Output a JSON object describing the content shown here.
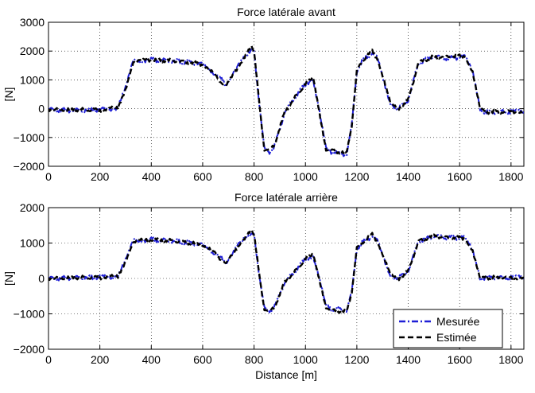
{
  "figure": {
    "legend": {
      "measured_label": "Mesurée",
      "estimated_label": "Estimée"
    },
    "colors": {
      "measured": "#1f1fd6",
      "estimated": "#000000"
    }
  },
  "chart_data": [
    {
      "type": "line",
      "title": "Force latérale avant",
      "xlabel": "",
      "ylabel": "[N]",
      "xlim": [
        0,
        1850
      ],
      "ylim": [
        -2000,
        3000
      ],
      "xticks": [
        0,
        200,
        400,
        600,
        800,
        1000,
        1200,
        1400,
        1600,
        1800
      ],
      "xtick_labels": [
        "0",
        "200",
        "400",
        "600",
        "800",
        "1000",
        "1200",
        "1400",
        "1600",
        "1800"
      ],
      "yticks": [
        -2000,
        -1000,
        0,
        1000,
        2000,
        3000
      ],
      "ytick_labels": [
        "−2000",
        "−1000",
        "0",
        "1000",
        "2000",
        "3000"
      ],
      "grid": true,
      "legend_position": "none",
      "x": [
        0,
        100,
        200,
        270,
        300,
        330,
        400,
        500,
        600,
        650,
        690,
        740,
        790,
        800,
        820,
        840,
        860,
        880,
        920,
        960,
        1000,
        1030,
        1050,
        1080,
        1100,
        1160,
        1180,
        1200,
        1220,
        1260,
        1280,
        1330,
        1360,
        1400,
        1440,
        1500,
        1560,
        1620,
        1650,
        1680,
        1700,
        1800,
        1850
      ],
      "series": [
        {
          "name": "Mesurée",
          "values": [
            -30,
            -60,
            -40,
            30,
            700,
            1650,
            1700,
            1650,
            1550,
            1200,
            850,
            1500,
            2100,
            2000,
            200,
            -1400,
            -1500,
            -1300,
            -100,
            400,
            850,
            1050,
            100,
            -1400,
            -1500,
            -1600,
            -600,
            1300,
            1650,
            1950,
            1750,
            200,
            -30,
            300,
            1600,
            1800,
            1750,
            1800,
            1300,
            0,
            -130,
            -100,
            -120
          ]
        },
        {
          "name": "Estimée",
          "values": [
            -30,
            -40,
            -40,
            30,
            700,
            1650,
            1700,
            1650,
            1550,
            1150,
            750,
            1500,
            2150,
            2000,
            200,
            -1400,
            -1450,
            -1250,
            -100,
            400,
            850,
            1050,
            100,
            -1400,
            -1450,
            -1550,
            -600,
            1300,
            1650,
            2000,
            1750,
            200,
            -20,
            300,
            1600,
            1800,
            1800,
            1850,
            1300,
            0,
            -120,
            -100,
            -100
          ]
        }
      ]
    },
    {
      "type": "line",
      "title": "Force latérale arrière",
      "xlabel": "Distance [m]",
      "ylabel": "[N]",
      "xlim": [
        0,
        1850
      ],
      "ylim": [
        -2000,
        2000
      ],
      "xticks": [
        0,
        200,
        400,
        600,
        800,
        1000,
        1200,
        1400,
        1600,
        1800
      ],
      "xtick_labels": [
        "0",
        "200",
        "400",
        "600",
        "800",
        "1000",
        "1200",
        "1400",
        "1600",
        "1800"
      ],
      "yticks": [
        -2000,
        -1000,
        0,
        1000,
        2000
      ],
      "ytick_labels": [
        "−2000",
        "−1000",
        "0",
        "1000",
        "2000"
      ],
      "grid": true,
      "legend_position": "bottom-right",
      "x": [
        0,
        100,
        200,
        270,
        300,
        330,
        400,
        500,
        600,
        650,
        690,
        740,
        790,
        800,
        820,
        840,
        860,
        880,
        920,
        960,
        1000,
        1030,
        1050,
        1080,
        1100,
        1160,
        1180,
        1200,
        1220,
        1260,
        1280,
        1330,
        1360,
        1400,
        1440,
        1500,
        1560,
        1620,
        1650,
        1680,
        1700,
        1800,
        1850
      ],
      "series": [
        {
          "name": "Mesurée",
          "values": [
            0,
            20,
            30,
            60,
            500,
            1050,
            1100,
            1050,
            950,
            700,
            450,
            950,
            1300,
            1250,
            100,
            -850,
            -900,
            -800,
            -100,
            200,
            550,
            650,
            100,
            -800,
            -850,
            -900,
            -400,
            850,
            1000,
            1200,
            1050,
            100,
            0,
            200,
            1050,
            1200,
            1150,
            1150,
            800,
            0,
            20,
            30,
            20
          ]
        },
        {
          "name": "Estimée",
          "values": [
            0,
            20,
            30,
            60,
            500,
            1050,
            1100,
            1050,
            950,
            700,
            400,
            950,
            1350,
            1250,
            100,
            -850,
            -950,
            -800,
            -100,
            200,
            550,
            650,
            100,
            -800,
            -900,
            -950,
            -400,
            850,
            1000,
            1250,
            1050,
            100,
            -30,
            200,
            1050,
            1200,
            1150,
            1150,
            800,
            0,
            20,
            30,
            20
          ]
        }
      ]
    }
  ]
}
